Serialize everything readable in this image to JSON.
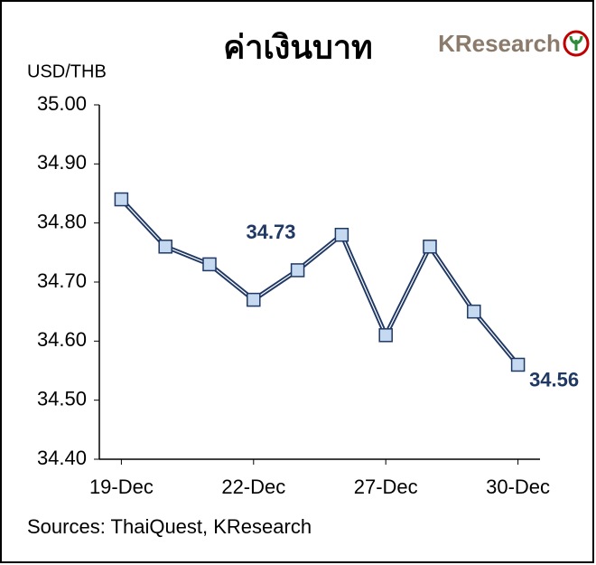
{
  "chart_data": {
    "type": "line",
    "title": "ค่าเงินบาท",
    "logo": "KResearch",
    "y_label": "USD/THB",
    "source": "Sources: ThaiQuest, KResearch",
    "categories": [
      "19-Dec",
      null,
      null,
      "22-Dec",
      null,
      null,
      "27-Dec",
      null,
      null,
      "30-Dec"
    ],
    "values": [
      34.84,
      34.76,
      34.73,
      34.67,
      34.72,
      34.78,
      34.61,
      34.76,
      34.65,
      34.56
    ],
    "value_labels": [
      null,
      null,
      "34.73",
      null,
      null,
      null,
      null,
      null,
      null,
      "34.56"
    ],
    "color": "#1f3864",
    "marker_color": "#c5d9f1",
    "ylim": [
      34.4,
      35.0
    ],
    "yticks": [
      {
        "value": 34.4,
        "label": "34.40"
      },
      {
        "value": 34.5,
        "label": "34.50"
      },
      {
        "value": 34.6,
        "label": "34.60"
      },
      {
        "value": 34.7,
        "label": "34.70"
      },
      {
        "value": 34.8,
        "label": "34.80"
      },
      {
        "value": 34.9,
        "label": "34.90"
      },
      {
        "value": 35.0,
        "label": "35.00"
      }
    ],
    "grid": false
  }
}
